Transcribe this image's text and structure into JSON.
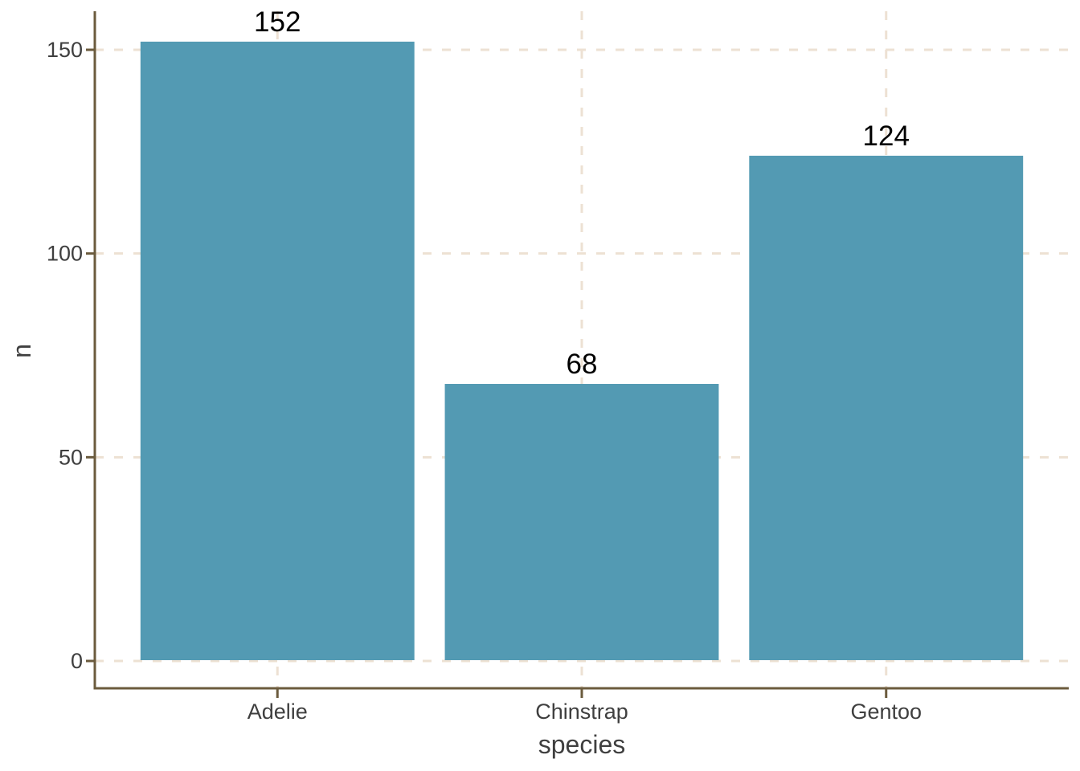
{
  "chart_data": {
    "type": "bar",
    "title": "",
    "categories": [
      "Adelie",
      "Chinstrap",
      "Gentoo"
    ],
    "values": [
      152,
      68,
      124
    ],
    "value_labels": [
      "152",
      "68",
      "124"
    ],
    "xlabel": "species",
    "ylabel": "n",
    "y_ticks": [
      0,
      50,
      100,
      150
    ],
    "ylim": [
      0,
      160
    ],
    "legend": "none",
    "grid": {
      "style": "dashed",
      "horizontal_at": [
        0,
        50,
        100,
        150
      ],
      "vertical_at_categories": true,
      "minor": "none"
    },
    "colors": {
      "bar_fill": "#539AB3",
      "axis_line": "#6B5B3D",
      "grid_line": "#EDE1D3",
      "tick_label": "#3F3F3F",
      "axis_title": "#3F3F3F",
      "value_label": "#000000",
      "background": "#FFFFFF"
    }
  }
}
